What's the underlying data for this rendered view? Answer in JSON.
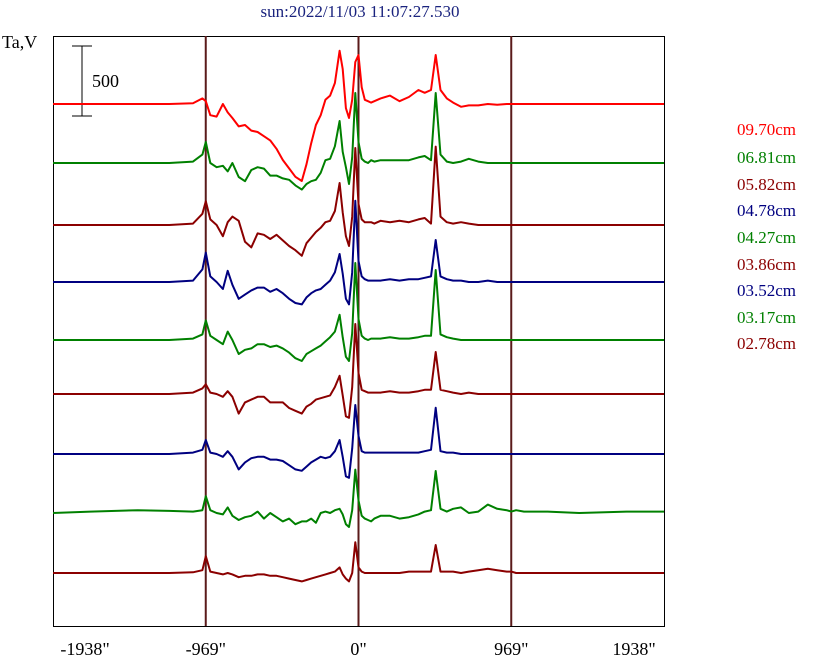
{
  "chart_data": {
    "type": "line",
    "title": "sun:2022/11/03 11:07:27.530",
    "ylabel": "Ta,V",
    "scale_bar_label": "500",
    "scale_bar_value": 500,
    "xlim": [
      -1938,
      1938
    ],
    "x_ticks": [
      -1938,
      -969,
      0,
      969,
      1938
    ],
    "x_tick_labels": [
      "-1938\"",
      "-969\"",
      "0\"",
      "969\"",
      "1938\""
    ],
    "vertical_lines": [
      -969,
      0,
      969
    ],
    "x": [
      -1938,
      -1700,
      -1400,
      -1200,
      -1050,
      -990,
      -969,
      -940,
      -900,
      -860,
      -830,
      -800,
      -760,
      -720,
      -680,
      -640,
      -600,
      -560,
      -520,
      -480,
      -440,
      -400,
      -360,
      -330,
      -300,
      -270,
      -240,
      -210,
      -180,
      -150,
      -120,
      -100,
      -80,
      -60,
      -40,
      -20,
      0,
      20,
      40,
      60,
      80,
      100,
      140,
      200,
      260,
      320,
      380,
      420,
      460,
      490,
      520,
      560,
      600,
      650,
      700,
      760,
      820,
      880,
      940,
      969,
      1000,
      1050,
      1200,
      1400,
      1700,
      1938
    ],
    "series": [
      {
        "name": "09.70cm",
        "color": "#ff0000",
        "values": [
          0,
          0,
          0,
          0,
          5,
          40,
          20,
          -80,
          -90,
          0,
          -60,
          -100,
          -160,
          -150,
          -190,
          -200,
          -230,
          -260,
          -320,
          -400,
          -460,
          -520,
          -550,
          -430,
          -280,
          -150,
          -80,
          30,
          60,
          150,
          380,
          250,
          -30,
          -100,
          30,
          300,
          350,
          120,
          30,
          20,
          10,
          20,
          40,
          60,
          20,
          50,
          100,
          80,
          100,
          350,
          100,
          40,
          10,
          -20,
          -10,
          -10,
          0,
          -5,
          0,
          0,
          0,
          0,
          0,
          0,
          0,
          0
        ]
      },
      {
        "name": "06.81cm",
        "color": "#008000",
        "values": [
          0,
          0,
          0,
          0,
          10,
          60,
          150,
          0,
          -30,
          -20,
          -60,
          0,
          -100,
          -130,
          -50,
          -30,
          -40,
          -90,
          -90,
          -110,
          -120,
          -160,
          -190,
          -150,
          -130,
          -120,
          -70,
          20,
          30,
          120,
          300,
          80,
          -30,
          -150,
          40,
          500,
          150,
          30,
          10,
          0,
          20,
          10,
          20,
          20,
          20,
          20,
          40,
          50,
          20,
          500,
          60,
          10,
          0,
          10,
          30,
          10,
          0,
          0,
          0,
          0,
          0,
          0,
          0,
          0,
          0,
          0
        ]
      },
      {
        "name": "05.82cm",
        "color": "#8b0000",
        "values": [
          0,
          0,
          0,
          0,
          10,
          80,
          170,
          40,
          0,
          -80,
          20,
          60,
          30,
          -120,
          -160,
          -60,
          -70,
          -100,
          -70,
          -110,
          -150,
          -180,
          -220,
          -130,
          -90,
          -50,
          -20,
          20,
          30,
          100,
          300,
          90,
          -80,
          -150,
          60,
          550,
          150,
          40,
          20,
          20,
          20,
          10,
          30,
          20,
          30,
          20,
          40,
          50,
          10,
          560,
          60,
          20,
          10,
          20,
          10,
          0,
          0,
          0,
          0,
          0,
          0,
          0,
          0,
          0,
          0,
          0
        ]
      },
      {
        "name": "04.78cm",
        "color": "#000080",
        "values": [
          0,
          0,
          0,
          0,
          10,
          90,
          210,
          40,
          0,
          -50,
          80,
          -20,
          -120,
          -90,
          -60,
          -40,
          -40,
          -70,
          -50,
          -80,
          -120,
          -150,
          -160,
          -110,
          -80,
          -60,
          -50,
          -20,
          10,
          70,
          200,
          60,
          -120,
          -160,
          70,
          580,
          150,
          40,
          20,
          10,
          10,
          10,
          10,
          20,
          10,
          20,
          20,
          30,
          40,
          300,
          40,
          20,
          10,
          10,
          0,
          0,
          10,
          0,
          0,
          0,
          0,
          0,
          0,
          0,
          0,
          0
        ]
      },
      {
        "name": "04.27cm",
        "color": "#008000",
        "values": [
          0,
          0,
          0,
          0,
          10,
          40,
          140,
          30,
          0,
          -30,
          60,
          0,
          -100,
          -70,
          -60,
          -30,
          -30,
          -50,
          -40,
          -60,
          -90,
          -130,
          -150,
          -100,
          -80,
          -60,
          -40,
          -10,
          20,
          60,
          180,
          20,
          -120,
          -150,
          50,
          550,
          150,
          30,
          10,
          0,
          10,
          10,
          10,
          20,
          10,
          10,
          20,
          30,
          30,
          500,
          40,
          20,
          10,
          0,
          0,
          0,
          0,
          0,
          0,
          0,
          0,
          0,
          0,
          0,
          0,
          0
        ]
      },
      {
        "name": "03.86cm",
        "color": "#8b0000",
        "values": [
          0,
          0,
          0,
          0,
          10,
          40,
          70,
          10,
          0,
          -20,
          20,
          -20,
          -140,
          -60,
          -40,
          -20,
          -20,
          -60,
          -60,
          -60,
          -100,
          -120,
          -140,
          -90,
          -70,
          -40,
          -30,
          -20,
          -10,
          50,
          130,
          -10,
          -160,
          -170,
          50,
          500,
          150,
          30,
          20,
          10,
          10,
          10,
          10,
          20,
          10,
          10,
          20,
          30,
          30,
          300,
          30,
          20,
          10,
          0,
          10,
          0,
          0,
          0,
          0,
          0,
          0,
          0,
          0,
          0,
          0,
          0
        ]
      },
      {
        "name": "03.52cm",
        "color": "#000080",
        "values": [
          0,
          0,
          0,
          0,
          10,
          30,
          100,
          10,
          0,
          -20,
          20,
          -20,
          -110,
          -60,
          -30,
          -20,
          -20,
          -40,
          -40,
          -50,
          -80,
          -110,
          -120,
          -90,
          -60,
          -40,
          -20,
          -30,
          -20,
          20,
          100,
          -20,
          -160,
          -170,
          40,
          350,
          130,
          20,
          10,
          10,
          10,
          10,
          10,
          10,
          10,
          10,
          10,
          20,
          30,
          330,
          20,
          10,
          10,
          0,
          0,
          0,
          0,
          0,
          0,
          0,
          0,
          0,
          0,
          0,
          0,
          0
        ]
      },
      {
        "name": "03.17cm",
        "color": "#008000",
        "values": [
          0,
          10,
          20,
          15,
          10,
          20,
          120,
          20,
          0,
          -10,
          40,
          -20,
          -50,
          -30,
          -20,
          10,
          -40,
          0,
          -30,
          -60,
          -40,
          -80,
          -60,
          -60,
          -40,
          -70,
          0,
          10,
          0,
          20,
          30,
          -10,
          -80,
          -100,
          20,
          310,
          90,
          -20,
          -40,
          -50,
          -60,
          -40,
          -20,
          -20,
          -40,
          -30,
          -10,
          10,
          20,
          300,
          30,
          10,
          30,
          40,
          0,
          10,
          60,
          30,
          20,
          10,
          20,
          10,
          10,
          0,
          10,
          10
        ]
      },
      {
        "name": "02.78cm",
        "color": "#8b0000",
        "values": [
          0,
          0,
          0,
          0,
          5,
          20,
          120,
          10,
          0,
          -10,
          0,
          -10,
          -30,
          -20,
          -20,
          -10,
          -10,
          -20,
          -20,
          -30,
          -40,
          -50,
          -60,
          -50,
          -40,
          -30,
          -20,
          -10,
          0,
          10,
          40,
          -10,
          -40,
          -60,
          0,
          220,
          40,
          10,
          0,
          0,
          0,
          0,
          0,
          0,
          0,
          10,
          10,
          10,
          10,
          200,
          10,
          10,
          10,
          0,
          10,
          20,
          30,
          20,
          10,
          10,
          0,
          0,
          0,
          0,
          0,
          0
        ]
      }
    ],
    "legend_position": "right"
  }
}
